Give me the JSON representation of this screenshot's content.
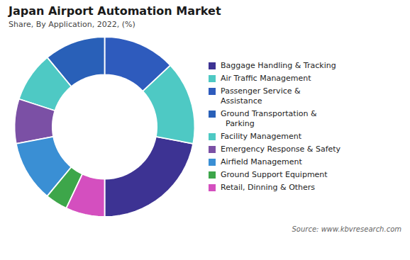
{
  "chart_data": {
    "type": "pie",
    "title": "Japan Airport Automation Market",
    "subtitle": "Share, By Application, 2022, (%)",
    "caption": "Source: www.kbvresearch.com",
    "categories": [
      "Baggage Handling & Tracking",
      "Air Traffic Management",
      "Passenger Service &\nAssistance",
      "Ground Transportation &\n  Parking",
      "Facility Management",
      "Emergency Response & Safety",
      "Airfield Management",
      "Ground Support Equipment",
      "Retail, Dinning & Others"
    ],
    "values": [
      22,
      15,
      13,
      11,
      9,
      8,
      11,
      4,
      7
    ],
    "colors": [
      "#3d3393",
      "#4ec9c4",
      "#2e5bbd",
      "#2960b8",
      "#4ec9c4",
      "#7b50a5",
      "#3a8fd4",
      "#3da64a",
      "#d44fbf"
    ],
    "legend": "right"
  }
}
